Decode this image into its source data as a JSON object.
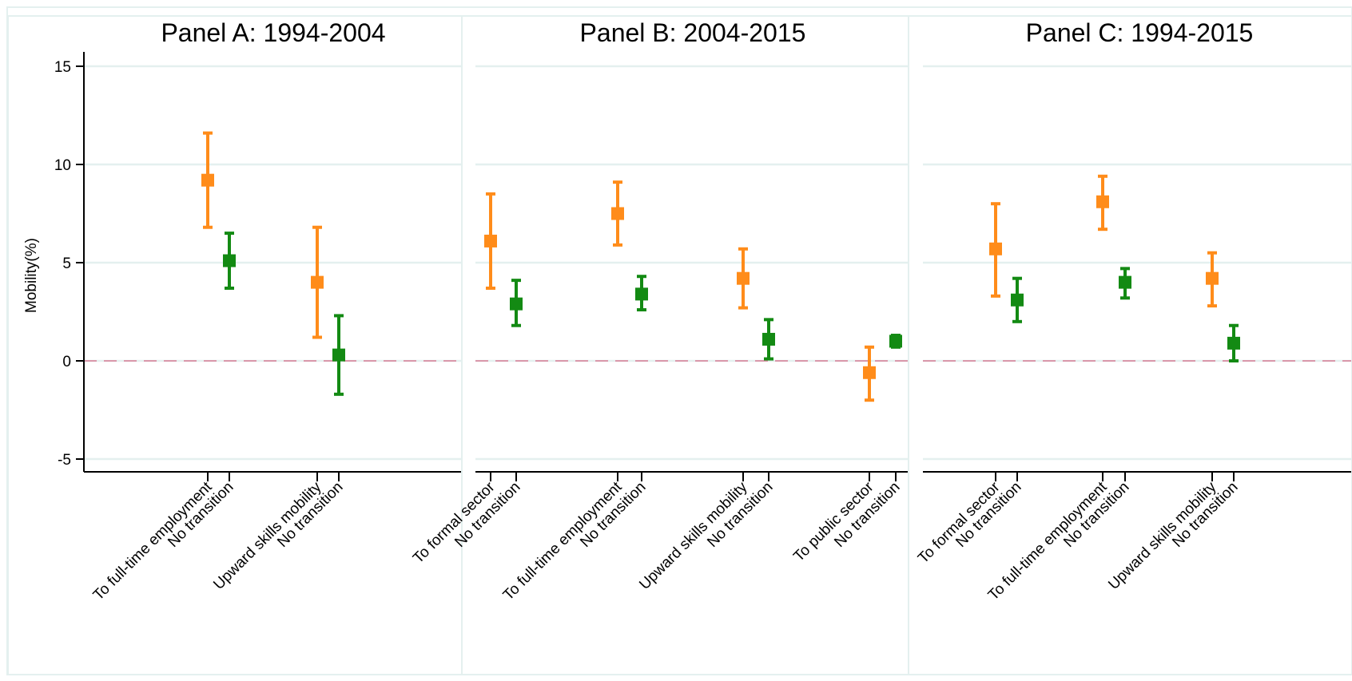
{
  "chart_data": {
    "type": "scatter",
    "subtype": "coefficient-plot-with-confidence-intervals",
    "ylabel": "Mobility(%)",
    "ylim": [
      -6,
      16
    ],
    "yticks": [
      -5,
      0,
      5,
      10,
      15
    ],
    "reference_line": {
      "y": 0,
      "style": "dashed",
      "color": "#d98ca0"
    },
    "grid": true,
    "colors": {
      "transition": "#ff8c1a",
      "no_transition": "#138a13",
      "panel_border": "#e4f0ef"
    },
    "panels": [
      {
        "title": "Panel A: 1994-2004",
        "points": [
          {
            "label": "To full-time employment",
            "group": "transition",
            "estimate": 9.2,
            "lower": 6.8,
            "upper": 11.6
          },
          {
            "label": "No transition",
            "group": "no_transition",
            "estimate": 5.1,
            "lower": 3.7,
            "upper": 6.5
          },
          {
            "label": "Upward skills mobility",
            "group": "transition",
            "estimate": 4.0,
            "lower": 1.2,
            "upper": 6.8
          },
          {
            "label": "No transition",
            "group": "no_transition",
            "estimate": 0.3,
            "lower": -1.7,
            "upper": 2.3
          }
        ]
      },
      {
        "title": "Panel B: 2004-2015",
        "points": [
          {
            "label": "To formal sector",
            "group": "transition",
            "estimate": 6.1,
            "lower": 3.7,
            "upper": 8.5
          },
          {
            "label": "No transition",
            "group": "no_transition",
            "estimate": 2.9,
            "lower": 1.8,
            "upper": 4.1
          },
          {
            "label": "To full-time employment",
            "group": "transition",
            "estimate": 7.5,
            "lower": 5.9,
            "upper": 9.1
          },
          {
            "label": "No transition",
            "group": "no_transition",
            "estimate": 3.4,
            "lower": 2.6,
            "upper": 4.3
          },
          {
            "label": "Upward skills mobility",
            "group": "transition",
            "estimate": 4.2,
            "lower": 2.7,
            "upper": 5.7
          },
          {
            "label": "No transition",
            "group": "no_transition",
            "estimate": 1.1,
            "lower": 0.1,
            "upper": 2.1
          },
          {
            "label": "To public sector",
            "group": "transition",
            "estimate": -0.6,
            "lower": -2.0,
            "upper": 0.7
          },
          {
            "label": "No transition",
            "group": "no_transition",
            "estimate": 1.0,
            "lower": 0.7,
            "upper": 1.3
          }
        ]
      },
      {
        "title": "Panel C: 1994-2015",
        "points": [
          {
            "label": "To formal sector",
            "group": "transition",
            "estimate": 5.7,
            "lower": 3.3,
            "upper": 8.0
          },
          {
            "label": "No transition",
            "group": "no_transition",
            "estimate": 3.1,
            "lower": 2.0,
            "upper": 4.2
          },
          {
            "label": "To full-time employment",
            "group": "transition",
            "estimate": 8.1,
            "lower": 6.7,
            "upper": 9.4
          },
          {
            "label": "No transition",
            "group": "no_transition",
            "estimate": 4.0,
            "lower": 3.2,
            "upper": 4.7
          },
          {
            "label": "Upward skills mobility",
            "group": "transition",
            "estimate": 4.2,
            "lower": 2.8,
            "upper": 5.5
          },
          {
            "label": "No transition",
            "group": "no_transition",
            "estimate": 0.9,
            "lower": 0.0,
            "upper": 1.8
          }
        ]
      }
    ]
  }
}
